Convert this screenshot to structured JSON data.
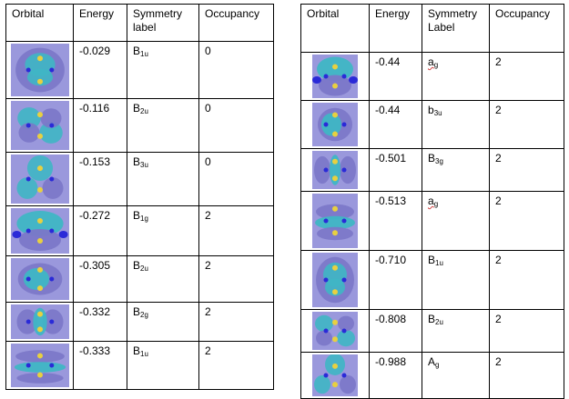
{
  "headers_left": {
    "orbital": "Orbital",
    "energy": "Energy",
    "symmetry": "Symmetry label",
    "occupancy": "Occupancy"
  },
  "headers_right": {
    "orbital": "Orbital",
    "energy": "Energy",
    "symmetry": "Symmetry Label",
    "occupancy": "Occupancy"
  },
  "left_rows": [
    {
      "energy": "-0.029",
      "sym": "B",
      "sub": "1u",
      "occ": "0",
      "icon": "orbital-lobe-icon"
    },
    {
      "energy": "-0.116",
      "sym": "B",
      "sub": "2u",
      "occ": "0",
      "icon": "orbital-lobe-icon"
    },
    {
      "energy": "-0.153",
      "sym": "B",
      "sub": "3u",
      "occ": "0",
      "icon": "orbital-lobe-icon"
    },
    {
      "energy": "-0.272",
      "sym": "B",
      "sub": "1g",
      "occ": "2",
      "icon": "orbital-lobe-icon"
    },
    {
      "energy": "-0.305",
      "sym": "B",
      "sub": "2u",
      "occ": "2",
      "icon": "orbital-lobe-icon"
    },
    {
      "energy": "-0.332",
      "sym": "B",
      "sub": "2g",
      "occ": "2",
      "icon": "orbital-lobe-icon"
    },
    {
      "energy": "-0.333",
      "sym": "B",
      "sub": "1u",
      "occ": "2",
      "icon": "orbital-lobe-icon"
    }
  ],
  "right_rows": [
    {
      "energy": "-0.44",
      "sym": "a",
      "sub": "g",
      "occ": "2",
      "icon": "orbital-lobe-icon"
    },
    {
      "energy": "-0.44",
      "sym": "b",
      "sub": "3u",
      "occ": "2",
      "icon": "orbital-lobe-icon"
    },
    {
      "energy": "-0.501",
      "sym": "B",
      "sub": "3g",
      "occ": "2",
      "icon": "orbital-lobe-icon"
    },
    {
      "energy": "-0.513",
      "sym": "a",
      "sub": "g",
      "occ": "2",
      "icon": "orbital-lobe-icon"
    },
    {
      "energy": "-0.710",
      "sym": "B",
      "sub": "1u",
      "occ": "2",
      "icon": "orbital-lobe-icon"
    },
    {
      "energy": "-0.808",
      "sym": "B",
      "sub": "2u",
      "occ": "2",
      "icon": "orbital-lobe-icon"
    },
    {
      "energy": "-0.988",
      "sym": "A",
      "sub": "g",
      "occ": "2",
      "icon": "orbital-lobe-icon"
    }
  ],
  "colors": {
    "background": "#9a98dc",
    "lobe_cyan": "#3fb6c4",
    "lobe_violet": "#7b77c8",
    "atom_yellow": "#e8d040",
    "atom_blue": "#2a2ad8"
  }
}
